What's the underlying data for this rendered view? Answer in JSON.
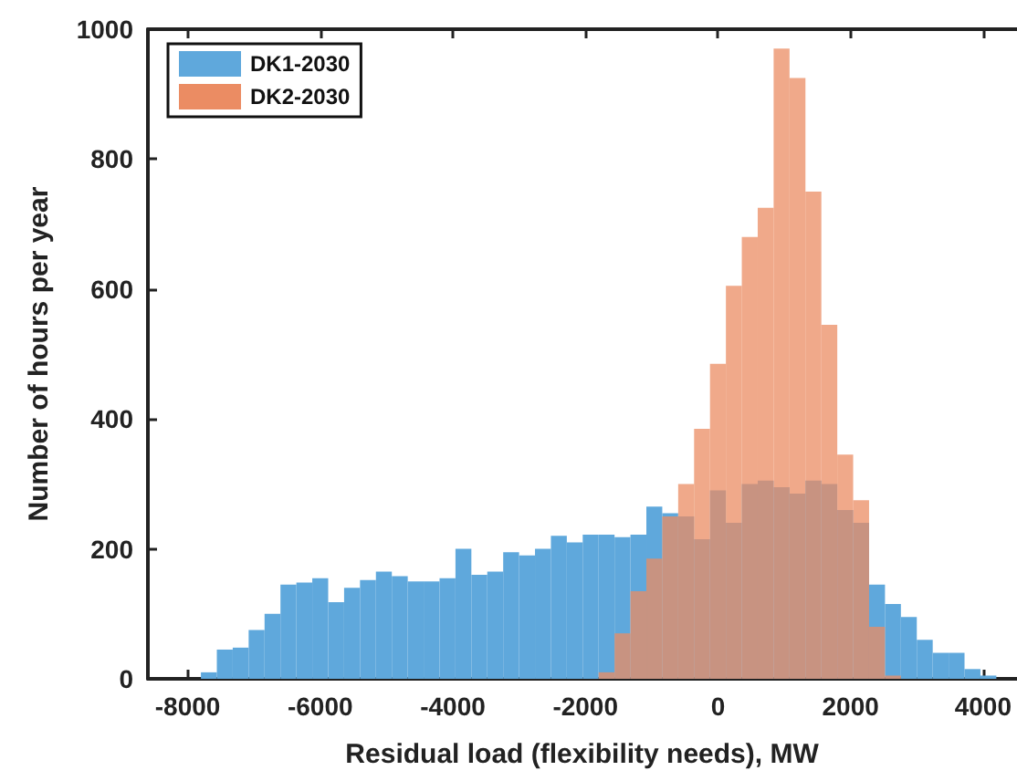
{
  "chart_data": {
    "type": "histogram",
    "xlabel": "Residual load (flexibility needs), MW",
    "ylabel": "Number of hours per year",
    "bins": [
      -7800,
      -7560,
      -7320,
      -7080,
      -6840,
      -6600,
      -6360,
      -6120,
      -5880,
      -5640,
      -5400,
      -5160,
      -4920,
      -4680,
      -4440,
      -4200,
      -3960,
      -3720,
      -3480,
      -3240,
      -3000,
      -2760,
      -2520,
      -2280,
      -2040,
      -1800,
      -1560,
      -1320,
      -1080,
      -840,
      -600,
      -360,
      -120,
      120,
      360,
      600,
      840,
      1080,
      1320,
      1560,
      1800,
      2040,
      2280,
      2520,
      2760,
      3000,
      3240,
      3480,
      3720,
      3960,
      4200
    ],
    "series": [
      {
        "name": "DK1-2030",
        "color": "#5fa8dc",
        "values": [
          10,
          45,
          48,
          75,
          100,
          145,
          148,
          155,
          118,
          140,
          152,
          165,
          158,
          150,
          150,
          155,
          200,
          160,
          165,
          195,
          190,
          200,
          220,
          210,
          222,
          222,
          218,
          222,
          265,
          255,
          250,
          215,
          290,
          240,
          300,
          305,
          295,
          285,
          305,
          300,
          260,
          240,
          145,
          115,
          95,
          60,
          40,
          40,
          15,
          5
        ]
      },
      {
        "name": "DK2-2030",
        "color": "#eb8c63",
        "values": [
          0,
          0,
          0,
          0,
          0,
          0,
          0,
          0,
          0,
          0,
          0,
          0,
          0,
          0,
          0,
          0,
          0,
          0,
          0,
          0,
          0,
          0,
          0,
          0,
          0,
          10,
          70,
          135,
          185,
          250,
          300,
          385,
          485,
          605,
          680,
          725,
          970,
          925,
          750,
          545,
          345,
          275,
          80,
          5,
          0,
          0,
          0,
          0,
          0,
          0
        ]
      }
    ],
    "xlim": [
      -8600,
      4500
    ],
    "xticks": [
      -8000,
      -6000,
      -4000,
      -2000,
      0,
      2000,
      4000
    ],
    "ylim": [
      0,
      1000
    ],
    "yticks": [
      0,
      200,
      400,
      600,
      800,
      1000
    ],
    "grid": false,
    "legend": "top left"
  }
}
